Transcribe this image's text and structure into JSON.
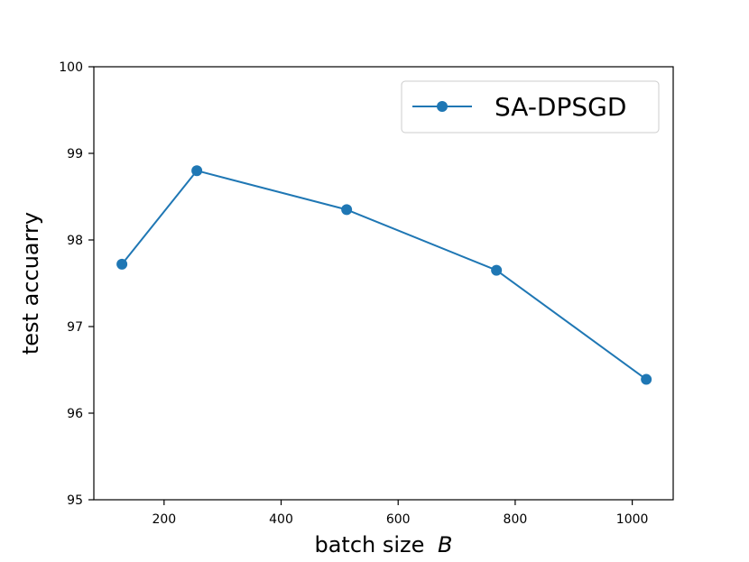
{
  "chart_data": {
    "type": "line",
    "title": "",
    "xlabel": "batch size",
    "xlabel_var": "B",
    "ylabel": "test accuarry",
    "xlim": [
      80,
      1070
    ],
    "ylim": [
      95,
      100
    ],
    "xticks": [
      200,
      400,
      600,
      800,
      1000
    ],
    "yticks": [
      95,
      96,
      97,
      98,
      99,
      100
    ],
    "grid": false,
    "legend_position": "top-right",
    "series": [
      {
        "name": "SA-DPSGD",
        "color": "#1f77b4",
        "marker": "circle",
        "x": [
          128,
          256,
          512,
          768,
          1024
        ],
        "y": [
          97.72,
          98.8,
          98.35,
          97.65,
          96.39
        ]
      }
    ]
  }
}
